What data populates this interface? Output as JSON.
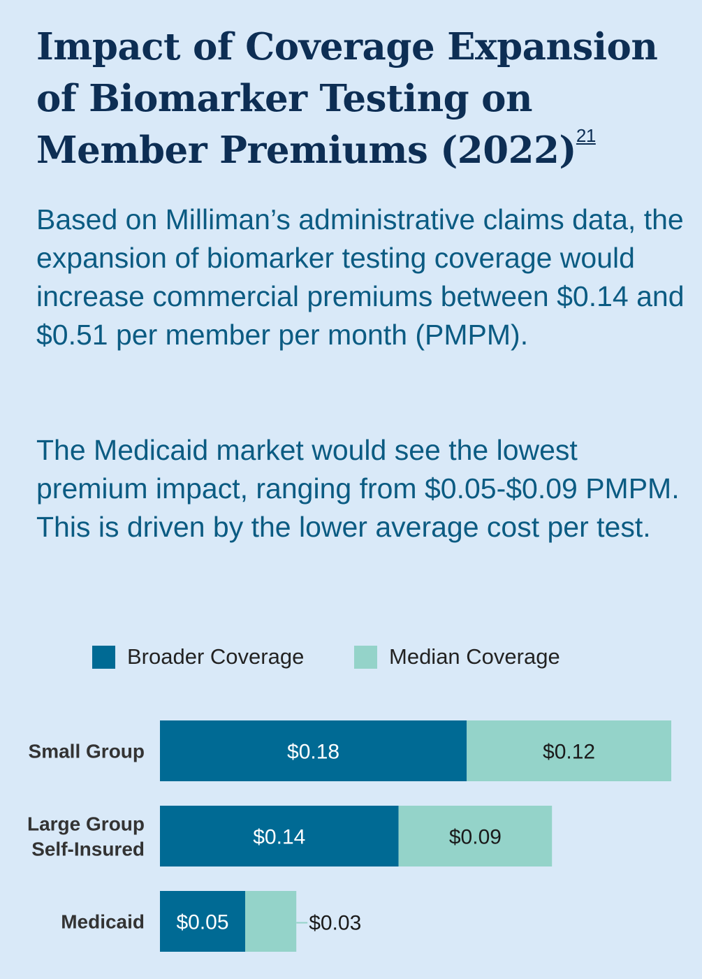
{
  "title": "Impact of Coverage Expansion of Biomarker Testing on Member Premiums (2022)",
  "footnote": "21",
  "paragraph1": "Based on Milliman’s administrative claims data, the expansion of biomarker testing coverage would increase commercial premiums between $0.14 and $0.51 per member per month (PMPM).",
  "paragraph2": "The Medicaid market would see the lowest premium impact, ranging from $0.05-$0.09 PMPM. This is driven by the lower average cost per test.",
  "colors": {
    "broader": "#006a94",
    "median": "#94d3c9",
    "title": "#0d2e54",
    "body": "#0b5b82",
    "background": "#d9e9f8"
  },
  "chart_data": {
    "type": "bar",
    "orientation": "horizontal",
    "stacked": true,
    "legend_position": "top",
    "categories": [
      [
        "Small Group"
      ],
      [
        "Large Group",
        "Self-Insured"
      ],
      [
        "Medicaid"
      ]
    ],
    "series": [
      {
        "name": "Broader Coverage",
        "values": [
          0.18,
          0.14,
          0.05
        ],
        "labels": [
          "$0.18",
          "$0.14",
          "$0.05"
        ],
        "color": "#006a94"
      },
      {
        "name": "Median Coverage",
        "values": [
          0.12,
          0.09,
          0.03
        ],
        "labels": [
          "$0.12",
          "$0.09",
          "$0.03"
        ],
        "color": "#94d3c9"
      }
    ]
  }
}
